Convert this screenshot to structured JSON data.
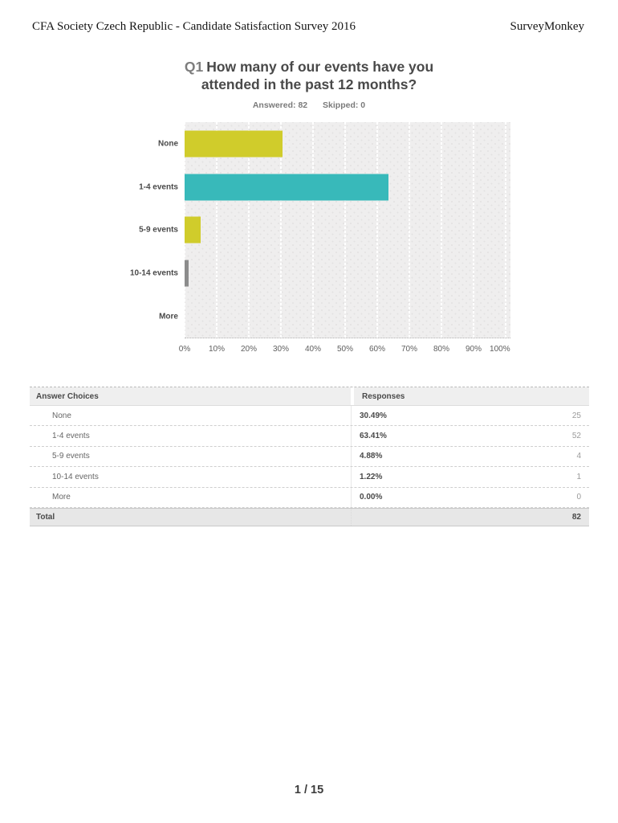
{
  "header": {
    "left_title": "CFA Society Czech Republic - Candidate Satisfaction Survey 2016",
    "right_brand": "SurveyMonkey"
  },
  "question": {
    "number": "Q1",
    "title": "How many of our events have you attended in the past 12 months?",
    "answered_label": "Answered: 82",
    "skipped_label": "Skipped: 0"
  },
  "chart_data": {
    "type": "bar",
    "orientation": "horizontal",
    "title": "",
    "xlabel": "",
    "ylabel": "",
    "categories": [
      "None",
      "1-4 events",
      "5-9 events",
      "10-14 events",
      "More"
    ],
    "values": [
      30.49,
      63.41,
      4.88,
      1.22,
      0.0
    ],
    "bar_colors": [
      "#d0cc2b",
      "#38b9ba",
      "#d0cc2b",
      "#8c8c8c",
      "#d0cc2b"
    ],
    "xlim": [
      0,
      100
    ],
    "x_ticks": [
      "0%",
      "10%",
      "20%",
      "30%",
      "40%",
      "50%",
      "60%",
      "70%",
      "80%",
      "90%",
      "100%"
    ],
    "grid": true,
    "legend": "none",
    "plot_background": "#efeeee"
  },
  "table": {
    "headers": {
      "choices": "Answer Choices",
      "responses": "Responses"
    },
    "rows": [
      {
        "choice": "None",
        "percent": "30.49%",
        "count": "25"
      },
      {
        "choice": "1-4 events",
        "percent": "63.41%",
        "count": "52"
      },
      {
        "choice": "5-9 events",
        "percent": "4.88%",
        "count": "4"
      },
      {
        "choice": "10-14 events",
        "percent": "1.22%",
        "count": "1"
      },
      {
        "choice": "More",
        "percent": "0.00%",
        "count": "0"
      }
    ],
    "total_label": "Total",
    "total_count": "82"
  },
  "footer": {
    "page_indicator": "1 / 15"
  },
  "colors": {
    "accent_yellow": "#d0cc2b",
    "accent_teal": "#38b9ba",
    "accent_gray": "#8c8c8c",
    "title_dark": "#494949",
    "muted_gray": "#7a7a7a"
  }
}
